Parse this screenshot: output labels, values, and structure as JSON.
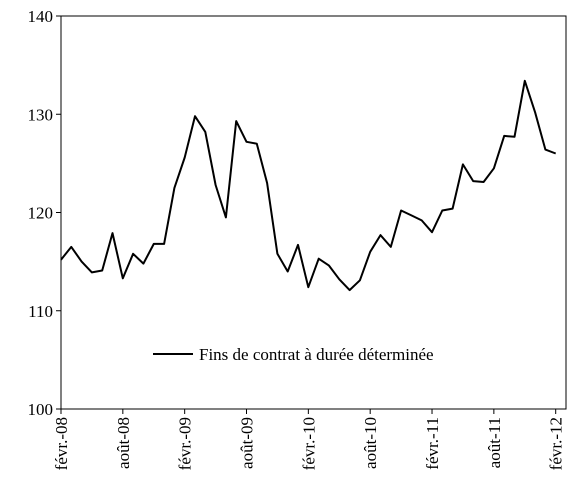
{
  "chart_data": {
    "type": "line",
    "title": "",
    "xlabel": "",
    "ylabel": "",
    "ylim": [
      100,
      140
    ],
    "yticks": [
      "100",
      "110",
      "120",
      "130",
      "140"
    ],
    "xticks": [
      "févr.-08",
      "août-08",
      "févr.-09",
      "août-09",
      "févr.-10",
      "août-10",
      "févr.-11",
      "août-11",
      "févr.-12"
    ],
    "x_start": "févr.-08",
    "x_end": "mars-12",
    "x_step": "1 mois",
    "grid": false,
    "legend": "bottom-center",
    "series": [
      {
        "name": "Fins de contrat à durée déterminée",
        "color": "#000000",
        "values": [
          115.2,
          116.5,
          115.0,
          113.9,
          114.1,
          117.9,
          113.3,
          115.8,
          114.8,
          116.8,
          116.8,
          122.5,
          125.6,
          129.8,
          128.2,
          122.8,
          119.5,
          129.3,
          127.2,
          127.0,
          123.0,
          115.8,
          114.0,
          116.7,
          112.4,
          115.3,
          114.6,
          113.2,
          112.1,
          113.1,
          116.0,
          117.7,
          116.5,
          120.2,
          119.7,
          119.2,
          118.0,
          120.2,
          120.4,
          124.9,
          123.2,
          123.1,
          124.5,
          127.8,
          127.7,
          133.4,
          130.2,
          126.4,
          126.0
        ]
      }
    ]
  }
}
